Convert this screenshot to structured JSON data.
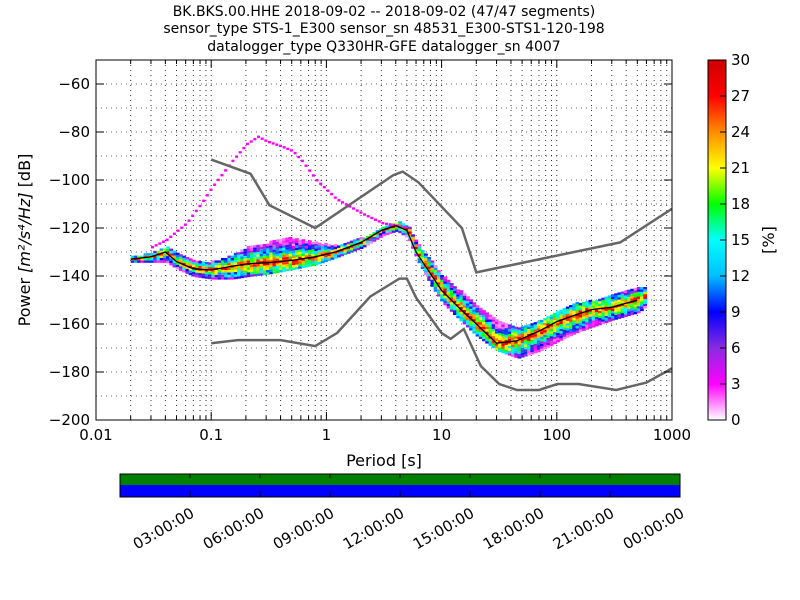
{
  "chart_data": {
    "type": "heatmap",
    "title_lines": [
      "BK.BKS.00.HHE   2018-09-02 -- 2018-09-02  (47/47 segments)",
      "sensor_type STS-1_E300 sensor_sn 48531_E300-STS1-120-198",
      "datalogger_type Q330HR-GFE datalogger_sn 4007"
    ],
    "xlabel": "Period [s]",
    "ylabel_prefix": "Power ",
    "ylabel_math": "[m²/s⁴/Hz]",
    "ylabel_suffix": " [dB]",
    "x_scale": "log",
    "xlim": [
      0.01,
      1000
    ],
    "ylim": [
      -200,
      -50
    ],
    "x_ticks": [
      {
        "value": 0.01,
        "label": "0.01"
      },
      {
        "value": 0.1,
        "label": "0.1"
      },
      {
        "value": 1,
        "label": "1"
      },
      {
        "value": 10,
        "label": "10"
      },
      {
        "value": 100,
        "label": "100"
      },
      {
        "value": 1000,
        "label": "1000"
      }
    ],
    "y_ticks": [
      {
        "value": -60,
        "label": "−60"
      },
      {
        "value": -80,
        "label": "−80"
      },
      {
        "value": -100,
        "label": "−100"
      },
      {
        "value": -120,
        "label": "−120"
      },
      {
        "value": -140,
        "label": "−140"
      },
      {
        "value": -160,
        "label": "−160"
      },
      {
        "value": -180,
        "label": "−180"
      },
      {
        "value": -200,
        "label": "−200"
      }
    ],
    "grid": true,
    "colorbar": {
      "label": "[%]",
      "range": [
        0,
        30
      ],
      "ticks": [
        "0",
        "3",
        "6",
        "9",
        "12",
        "15",
        "18",
        "21",
        "24",
        "27",
        "30"
      ],
      "colors": [
        "#ffffff",
        "#ff00ff",
        "#8a2be2",
        "#0000ff",
        "#00bfff",
        "#00ffff",
        "#00ff00",
        "#ffff00",
        "#ff8c00",
        "#ff0000",
        "#cc0000"
      ]
    },
    "noise_models": {
      "color": "#666666",
      "nhnm": {
        "x": [
          0.1,
          0.22,
          0.32,
          0.8,
          3.8,
          4.6,
          6.3,
          15,
          20,
          354.8,
          1000
        ],
        "y": [
          -91.5,
          -97.4,
          -110.5,
          -120,
          -98,
          -96.5,
          -101,
          -120,
          -138.5,
          -126,
          -112
        ]
      },
      "nlnm": {
        "x": [
          0.1,
          0.17,
          0.4,
          0.8,
          1.24,
          2.4,
          4.3,
          5,
          6,
          10,
          12,
          15.6,
          21.9,
          31.6,
          45,
          70,
          101,
          154,
          328,
          600,
          1000
        ],
        "y": [
          -168,
          -166.7,
          -166.7,
          -169.2,
          -163.7,
          -148.6,
          -141.1,
          -141.1,
          -149,
          -163.8,
          -166.2,
          -162.1,
          -177.5,
          -185,
          -187.5,
          -187.5,
          -185,
          -185,
          -187.5,
          -184.4,
          -178.5
        ]
      }
    },
    "pdf_series": {
      "mode_line": {
        "x": [
          0.02,
          0.03,
          0.04,
          0.05,
          0.07,
          0.1,
          0.15,
          0.2,
          0.3,
          0.5,
          0.8,
          1.2,
          2,
          3,
          4,
          5,
          6,
          8,
          10,
          14,
          20,
          30,
          45,
          70,
          100,
          150,
          200,
          300,
          500
        ],
        "y": [
          -133,
          -132,
          -130,
          -134,
          -137,
          -137.5,
          -136,
          -135,
          -134.5,
          -133.5,
          -132,
          -130,
          -126,
          -121,
          -119,
          -121,
          -130,
          -139,
          -146,
          -153,
          -160,
          -168,
          -167,
          -163,
          -159,
          -156,
          -154,
          -153,
          -150
        ]
      },
      "outer_upper": {
        "x": [
          0.03,
          0.04,
          0.06,
          0.08,
          0.1,
          0.15,
          0.2,
          0.25,
          0.3,
          0.4,
          0.5,
          0.6,
          0.8,
          1.2,
          2,
          3,
          4,
          5
        ],
        "y": [
          -128,
          -125,
          -118,
          -110,
          -103,
          -92,
          -85,
          -82,
          -84,
          -86,
          -88,
          -92,
          -100,
          -108,
          -114,
          -118,
          -119,
          -120
        ]
      },
      "band": {
        "x": [
          0.02,
          0.03,
          0.04,
          0.05,
          0.07,
          0.1,
          0.15,
          0.2,
          0.3,
          0.5,
          0.8,
          1.2,
          2,
          3,
          4,
          5,
          6,
          8,
          10,
          14,
          20,
          30,
          45,
          70,
          100,
          150,
          200,
          300,
          500,
          600
        ],
        "upper": [
          -132,
          -130,
          -128,
          -131,
          -134,
          -134,
          -131,
          -128,
          -126,
          -124,
          -126,
          -127,
          -124,
          -120,
          -117,
          -119,
          -126,
          -134,
          -140,
          -146,
          -152,
          -159,
          -161,
          -159,
          -154,
          -151,
          -150,
          -148,
          -145,
          -144
        ],
        "lower": [
          -134,
          -134,
          -134,
          -137,
          -140,
          -141,
          -141,
          -140,
          -139,
          -137,
          -135,
          -132,
          -128,
          -123,
          -121,
          -124,
          -133,
          -144,
          -151,
          -158,
          -165,
          -171,
          -174,
          -171,
          -167,
          -163,
          -161,
          -158,
          -155,
          -152
        ]
      }
    }
  },
  "time_axis": {
    "labels": [
      "03:00:00",
      "06:00:00",
      "09:00:00",
      "12:00:00",
      "15:00:00",
      "18:00:00",
      "21:00:00",
      "00:00:00"
    ],
    "data_availability_color": "#008000",
    "gap_fraction_color": "#0000ff"
  }
}
